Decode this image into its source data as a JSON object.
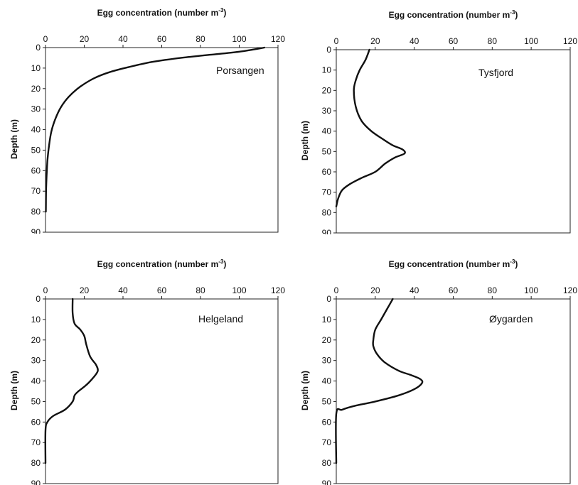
{
  "chart_data": [
    {
      "type": "line",
      "label": "Porsangen",
      "xlabel": "Egg concentration (number m",
      "xlabel_sup": "-3",
      "xlabel_close": ")",
      "ylabel": "Depth (m)",
      "xlim": [
        0,
        120
      ],
      "ylim": [
        0,
        90
      ],
      "y_inverted": true,
      "x_ticks": [
        "0",
        "20",
        "40",
        "60",
        "80",
        "100",
        "120"
      ],
      "y_ticks": [
        "0",
        "10",
        "20",
        "30",
        "40",
        "50",
        "60",
        "70",
        "80",
        "90"
      ],
      "series": [
        {
          "x": [
            113,
            100,
            85,
            70,
            55,
            43,
            33,
            25,
            18,
            12,
            8,
            5,
            3,
            1.8,
            1,
            0.6,
            0.3,
            0.2
          ],
          "y": [
            0,
            2,
            3.5,
            5,
            7,
            9.5,
            12,
            15,
            19,
            24,
            29,
            35,
            41,
            48,
            55,
            62,
            70,
            80
          ]
        }
      ]
    },
    {
      "type": "line",
      "label": "Tysfjord",
      "xlabel": "Egg concentration (number m",
      "xlabel_sup": "-3",
      "xlabel_close": ")",
      "ylabel": "Depth (m)",
      "xlim": [
        0,
        120
      ],
      "ylim": [
        0,
        90
      ],
      "y_inverted": true,
      "x_ticks": [
        "0",
        "20",
        "40",
        "60",
        "80",
        "100",
        "120"
      ],
      "y_ticks": [
        "0",
        "10",
        "20",
        "30",
        "40",
        "50",
        "60",
        "70",
        "80",
        "90"
      ],
      "series": [
        {
          "x": [
            17,
            15,
            12,
            10,
            9,
            10,
            13,
            18,
            24,
            29,
            34,
            35,
            30,
            25,
            20,
            13,
            7,
            3,
            1,
            0
          ],
          "y": [
            0,
            5,
            10,
            15,
            20,
            28,
            35,
            40,
            44,
            47,
            49,
            51,
            53,
            56,
            60,
            63,
            66,
            69,
            73,
            77
          ]
        }
      ]
    },
    {
      "type": "line",
      "label": "Helgeland",
      "xlabel": "Egg concentration (number m",
      "xlabel_sup": "-3",
      "xlabel_close": ")",
      "ylabel": "Depth (m)",
      "xlim": [
        0,
        120
      ],
      "ylim": [
        0,
        90
      ],
      "y_inverted": true,
      "x_ticks": [
        "0",
        "20",
        "40",
        "60",
        "80",
        "100",
        "120"
      ],
      "y_ticks": [
        "0",
        "10",
        "20",
        "30",
        "40",
        "50",
        "60",
        "70",
        "80",
        "90"
      ],
      "series": [
        {
          "x": [
            14,
            14,
            15,
            18,
            20,
            21,
            23,
            26,
            27,
            25,
            21,
            17,
            15,
            14,
            10,
            4,
            1,
            0,
            0
          ],
          "y": [
            0,
            7,
            12,
            15,
            18,
            22,
            28,
            32,
            35,
            38,
            42,
            45,
            47,
            50,
            54,
            57,
            60,
            64,
            80
          ]
        }
      ]
    },
    {
      "type": "line",
      "label": "Øygarden",
      "xlabel": "Egg concentration (number m",
      "xlabel_sup": "-3",
      "xlabel_close": ")",
      "ylabel": "Depth (m)",
      "xlim": [
        0,
        120
      ],
      "ylim": [
        0,
        90
      ],
      "y_inverted": true,
      "x_ticks": [
        "0",
        "20",
        "40",
        "60",
        "80",
        "100",
        "120"
      ],
      "y_ticks": [
        "0",
        "10",
        "20",
        "30",
        "40",
        "50",
        "60",
        "70",
        "80",
        "90"
      ],
      "series": [
        {
          "x": [
            29,
            26,
            23,
            20,
            19,
            19,
            21,
            25,
            32,
            38,
            43,
            44,
            40,
            32,
            20,
            10,
            3,
            0,
            0
          ],
          "y": [
            0,
            5,
            10,
            15,
            20,
            23,
            27,
            31,
            35,
            37,
            39,
            41,
            44,
            47,
            50,
            52,
            54,
            56,
            80
          ]
        }
      ]
    }
  ]
}
